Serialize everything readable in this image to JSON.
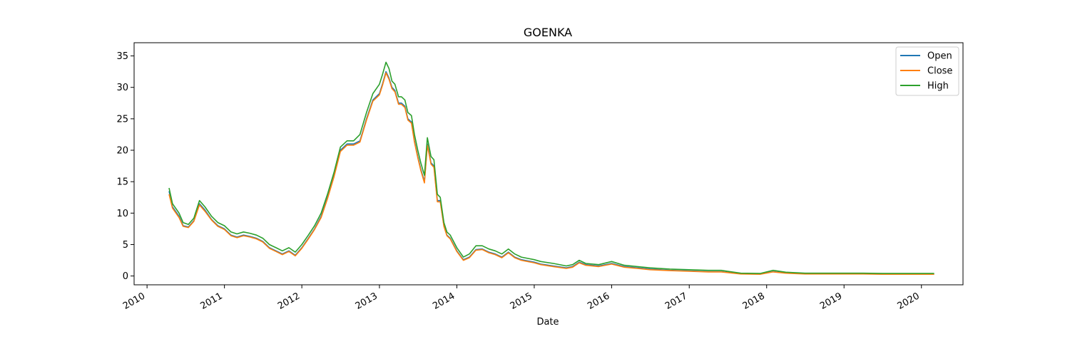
{
  "chart_data": {
    "type": "line",
    "title": "GOENKA",
    "xlabel": "Date",
    "ylabel": "",
    "x_ticks": [
      "2010",
      "2011",
      "2012",
      "2013",
      "2014",
      "2015",
      "2016",
      "2017",
      "2018",
      "2019",
      "2020"
    ],
    "y_ticks": [
      "0",
      "5",
      "10",
      "15",
      "20",
      "25",
      "30",
      "35"
    ],
    "xlim": [
      "2009-11-01",
      "2020-07-15"
    ],
    "ylim": [
      -1.4,
      37.1
    ],
    "grid": false,
    "legend_position": "top-right",
    "colors": {
      "Open": "#1f77b4",
      "Close": "#ff7f0e",
      "High": "#2ca02c"
    },
    "x": [
      "2010-04-15",
      "2010-05-01",
      "2010-06-01",
      "2010-06-20",
      "2010-07-15",
      "2010-08-10",
      "2010-09-05",
      "2010-10-01",
      "2010-11-01",
      "2010-12-01",
      "2011-01-01",
      "2011-02-01",
      "2011-03-01",
      "2011-04-01",
      "2011-05-01",
      "2011-06-01",
      "2011-07-01",
      "2011-08-01",
      "2011-09-01",
      "2011-10-01",
      "2011-11-01",
      "2011-12-01",
      "2012-01-01",
      "2012-02-01",
      "2012-03-01",
      "2012-04-01",
      "2012-05-01",
      "2012-06-01",
      "2012-07-01",
      "2012-08-01",
      "2012-09-01",
      "2012-10-01",
      "2012-11-01",
      "2012-12-01",
      "2013-01-01",
      "2013-01-15",
      "2013-02-01",
      "2013-02-15",
      "2013-03-01",
      "2013-03-15",
      "2013-04-01",
      "2013-04-15",
      "2013-05-01",
      "2013-05-15",
      "2013-06-01",
      "2013-06-15",
      "2013-07-01",
      "2013-07-15",
      "2013-08-01",
      "2013-08-15",
      "2013-09-01",
      "2013-09-15",
      "2013-10-01",
      "2013-10-15",
      "2013-11-01",
      "2013-11-15",
      "2013-12-01",
      "2014-01-01",
      "2014-02-01",
      "2014-03-01",
      "2014-04-01",
      "2014-05-01",
      "2014-06-01",
      "2014-07-01",
      "2014-08-01",
      "2014-09-01",
      "2014-10-01",
      "2014-11-01",
      "2014-12-01",
      "2015-01-01",
      "2015-02-01",
      "2015-04-01",
      "2015-06-01",
      "2015-07-01",
      "2015-08-01",
      "2015-09-01",
      "2015-11-01",
      "2016-01-01",
      "2016-03-01",
      "2016-05-01",
      "2016-07-01",
      "2016-10-01",
      "2017-01-01",
      "2017-04-01",
      "2017-06-01",
      "2017-09-01",
      "2017-12-01",
      "2018-02-01",
      "2018-04-01",
      "2018-07-01",
      "2018-10-01",
      "2019-01-01",
      "2019-04-01",
      "2019-07-01",
      "2019-10-01",
      "2020-01-01",
      "2020-03-01"
    ],
    "series": [
      {
        "name": "Open",
        "values": [
          13.5,
          11.0,
          9.5,
          8.0,
          7.8,
          8.8,
          11.5,
          10.5,
          9.0,
          8.0,
          7.5,
          6.5,
          6.2,
          6.5,
          6.3,
          6.0,
          5.5,
          4.5,
          4.0,
          3.5,
          4.0,
          3.3,
          4.5,
          6.0,
          7.5,
          9.5,
          12.5,
          16.0,
          20.0,
          21.0,
          21.0,
          21.5,
          25.0,
          28.0,
          29.0,
          30.5,
          32.5,
          31.5,
          30.0,
          29.5,
          27.5,
          27.5,
          27.0,
          25.0,
          24.5,
          21.5,
          19.0,
          17.0,
          15.0,
          21.0,
          18.0,
          17.5,
          12.0,
          12.0,
          8.0,
          6.5,
          6.0,
          4.0,
          2.6,
          3.0,
          4.2,
          4.3,
          3.8,
          3.5,
          3.0,
          3.8,
          3.0,
          2.6,
          2.4,
          2.2,
          1.9,
          1.6,
          1.3,
          1.5,
          2.2,
          1.8,
          1.6,
          2.0,
          1.5,
          1.3,
          1.1,
          0.9,
          0.8,
          0.7,
          0.7,
          0.35,
          0.3,
          0.7,
          0.5,
          0.35,
          0.35,
          0.35,
          0.35,
          0.3,
          0.3,
          0.3,
          0.3
        ]
      },
      {
        "name": "Close",
        "values": [
          13.0,
          10.8,
          9.3,
          7.9,
          7.7,
          8.7,
          11.3,
          10.3,
          8.9,
          7.9,
          7.4,
          6.4,
          6.1,
          6.4,
          6.2,
          5.9,
          5.4,
          4.4,
          3.9,
          3.4,
          3.9,
          3.2,
          4.4,
          5.9,
          7.4,
          9.3,
          12.3,
          15.8,
          19.8,
          20.8,
          20.8,
          21.3,
          24.8,
          27.8,
          28.8,
          30.3,
          32.3,
          31.3,
          29.8,
          29.3,
          27.3,
          27.3,
          26.8,
          24.8,
          24.3,
          21.3,
          18.8,
          16.8,
          14.8,
          20.8,
          17.8,
          17.3,
          11.8,
          11.8,
          7.9,
          6.4,
          5.9,
          3.9,
          2.5,
          2.9,
          4.1,
          4.2,
          3.7,
          3.4,
          2.9,
          3.7,
          2.9,
          2.5,
          2.3,
          2.1,
          1.8,
          1.5,
          1.2,
          1.4,
          2.1,
          1.7,
          1.5,
          1.9,
          1.4,
          1.2,
          1.0,
          0.85,
          0.75,
          0.65,
          0.65,
          0.32,
          0.28,
          0.65,
          0.45,
          0.32,
          0.32,
          0.32,
          0.32,
          0.28,
          0.28,
          0.28,
          0.28
        ]
      },
      {
        "name": "High",
        "values": [
          14.0,
          11.5,
          10.0,
          8.5,
          8.2,
          9.2,
          12.0,
          11.0,
          9.5,
          8.5,
          8.0,
          7.0,
          6.7,
          7.0,
          6.8,
          6.5,
          6.0,
          5.0,
          4.5,
          4.0,
          4.5,
          3.8,
          5.0,
          6.5,
          8.0,
          10.0,
          13.0,
          16.5,
          20.5,
          21.5,
          21.5,
          22.5,
          26.0,
          29.0,
          30.5,
          32.0,
          34.0,
          33.0,
          31.0,
          30.5,
          28.5,
          28.5,
          28.0,
          26.0,
          25.5,
          22.5,
          20.0,
          18.0,
          16.0,
          22.0,
          19.0,
          18.5,
          13.0,
          12.5,
          8.5,
          7.0,
          6.5,
          4.5,
          3.0,
          3.5,
          4.8,
          4.8,
          4.3,
          4.0,
          3.5,
          4.3,
          3.5,
          3.0,
          2.8,
          2.6,
          2.3,
          2.0,
          1.6,
          1.8,
          2.5,
          2.0,
          1.8,
          2.3,
          1.7,
          1.5,
          1.3,
          1.1,
          1.0,
          0.9,
          0.9,
          0.45,
          0.4,
          0.9,
          0.6,
          0.45,
          0.45,
          0.45,
          0.45,
          0.4,
          0.4,
          0.4,
          0.4
        ]
      }
    ]
  }
}
